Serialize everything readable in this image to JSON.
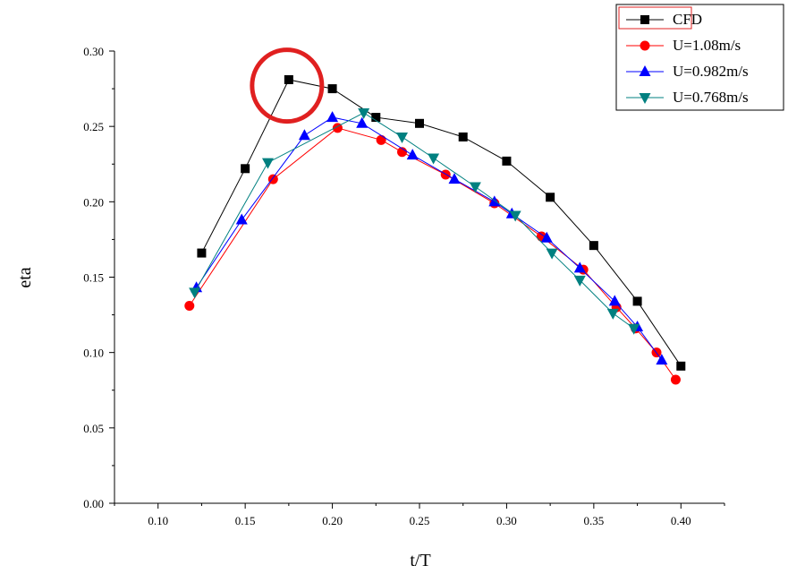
{
  "chart_data": {
    "type": "line",
    "xlabel": "t/T",
    "ylabel": "eta",
    "xlim": [
      0.075,
      0.425
    ],
    "ylim": [
      0.0,
      0.3
    ],
    "xticks": [
      "0.10",
      "0.15",
      "0.20",
      "0.25",
      "0.30",
      "0.35",
      "0.40"
    ],
    "yticks": [
      "0.00",
      "0.05",
      "0.10",
      "0.15",
      "0.20",
      "0.25",
      "0.30"
    ],
    "grid": false,
    "legend_position": "top-right",
    "annotation": {
      "shape": "circle",
      "color": "#e02020",
      "around_series": "CFD",
      "x": 0.175,
      "y": 0.28
    },
    "series": [
      {
        "name": "CFD",
        "color": "#000000",
        "marker": "square",
        "x": [
          0.125,
          0.15,
          0.175,
          0.2,
          0.225,
          0.25,
          0.275,
          0.3,
          0.325,
          0.35,
          0.375,
          0.4
        ],
        "y": [
          0.166,
          0.222,
          0.281,
          0.275,
          0.256,
          0.252,
          0.243,
          0.227,
          0.203,
          0.171,
          0.134,
          0.091
        ]
      },
      {
        "name": "U=1.08m/s",
        "color": "#ff0000",
        "marker": "circle",
        "x": [
          0.118,
          0.166,
          0.203,
          0.228,
          0.24,
          0.265,
          0.293,
          0.32,
          0.344,
          0.363,
          0.374,
          0.386,
          0.397
        ],
        "y": [
          0.131,
          0.215,
          0.249,
          0.241,
          0.233,
          0.218,
          0.199,
          0.177,
          0.155,
          0.13,
          0.116,
          0.1,
          0.082
        ]
      },
      {
        "name": "U=0.982m/s",
        "color": "#0000ff",
        "marker": "triangle-up",
        "x": [
          0.122,
          0.148,
          0.184,
          0.2,
          0.217,
          0.246,
          0.27,
          0.293,
          0.303,
          0.323,
          0.342,
          0.362,
          0.375,
          0.389
        ],
        "y": [
          0.143,
          0.188,
          0.244,
          0.256,
          0.252,
          0.231,
          0.215,
          0.2,
          0.192,
          0.176,
          0.156,
          0.134,
          0.117,
          0.095
        ]
      },
      {
        "name": "U=0.768m/s",
        "color": "#008080",
        "marker": "triangle-down",
        "x": [
          0.121,
          0.163,
          0.218,
          0.24,
          0.258,
          0.282,
          0.305,
          0.326,
          0.342,
          0.361,
          0.373
        ],
        "y": [
          0.14,
          0.226,
          0.259,
          0.243,
          0.229,
          0.21,
          0.191,
          0.166,
          0.148,
          0.126,
          0.116
        ]
      }
    ]
  }
}
